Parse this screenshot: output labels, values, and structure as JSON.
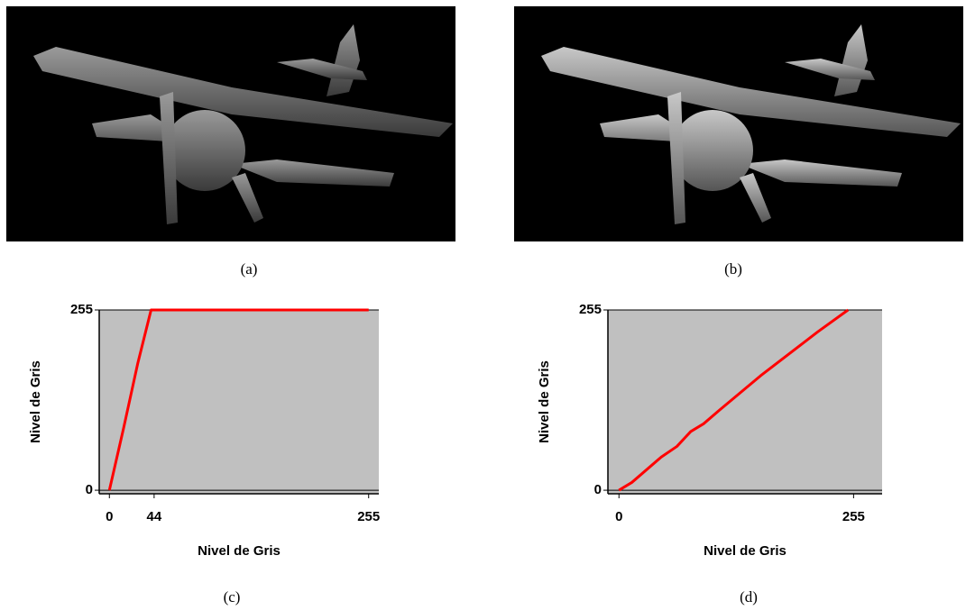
{
  "captions": [
    "(a)",
    "(b)",
    "(c)",
    "(d)"
  ],
  "chart_data": [
    {
      "type": "line",
      "xlabel": "Nivel de Gris",
      "ylabel": "Nivel de Gris",
      "xlim": [
        -10,
        265
      ],
      "ylim": [
        -5,
        255
      ],
      "xticks": [
        0,
        44,
        255
      ],
      "yticks": [
        0,
        255
      ],
      "grid": true,
      "x": [
        0,
        14,
        28,
        41,
        255
      ],
      "series": [
        {
          "color": "#ff0000",
          "values": [
            0,
            88,
            180,
            255,
            255
          ]
        }
      ]
    },
    {
      "type": "line",
      "xlabel": "Nivel de Gris",
      "ylabel": "Nivel de Gris",
      "xlim": [
        -12,
        286
      ],
      "ylim": [
        -5,
        255
      ],
      "xticks": [
        0,
        255
      ],
      "yticks": [
        0,
        255
      ],
      "grid": true,
      "x": [
        0,
        14,
        46,
        63,
        78,
        92,
        109,
        154,
        216,
        249
      ],
      "series": [
        {
          "color": "#ff0000",
          "values": [
            0,
            11,
            47,
            62,
            83,
            94,
            113,
            162,
            224,
            255
          ]
        }
      ]
    }
  ]
}
